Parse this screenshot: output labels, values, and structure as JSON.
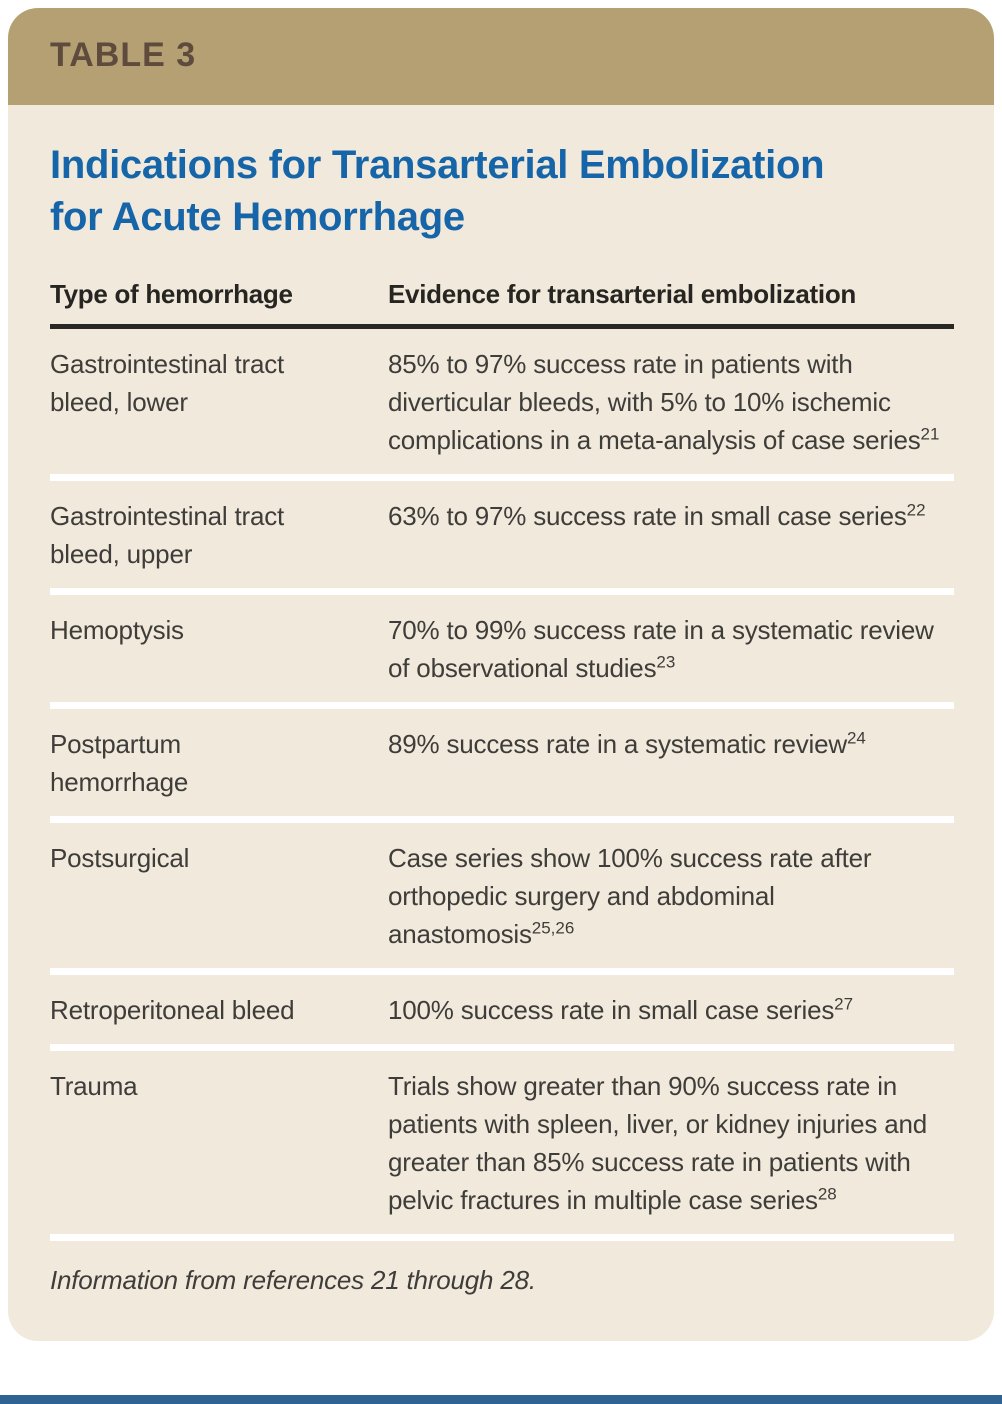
{
  "table_label": "TABLE 3",
  "title": "Indications for Transarterial Embolization for Acute Hemorrhage",
  "columns": {
    "type": "Type of hemorrhage",
    "evidence": "Evidence for transarterial embolization"
  },
  "rows": [
    {
      "type": "Gastrointestinal tract bleed, lower",
      "evidence": "85% to 97% success rate in patients with diverticular bleeds, with 5% to 10% ischemic complications in a meta-analysis of case series",
      "ref": "21"
    },
    {
      "type": "Gastrointestinal tract bleed, upper",
      "evidence": "63% to 97% success rate in small case series",
      "ref": "22"
    },
    {
      "type": "Hemoptysis",
      "evidence": "70% to 99% success rate in a systematic review of observational studies",
      "ref": "23"
    },
    {
      "type": "Postpartum hemorrhage",
      "evidence": "89% success rate in a systematic review",
      "ref": "24"
    },
    {
      "type": "Postsurgical",
      "evidence": "Case series show 100% success rate after orthopedic surgery and abdominal anastomosis",
      "ref": "25,26"
    },
    {
      "type": "Retroperitoneal bleed",
      "evidence": "100% success rate in small case series",
      "ref": "27"
    },
    {
      "type": "Trauma",
      "evidence": "Trials show greater than 90% success rate in patients with spleen, liver, or kidney injuries and greater than 85% success rate in patients with pelvic fractures in multiple case series",
      "ref": "28"
    }
  ],
  "footnote": "Information from references 21 through 28.",
  "colors": {
    "band_tan": "#b4a073",
    "band_label_brown": "#5e4b3d",
    "background_cream": "#f1e9dc",
    "title_blue": "#1565a8",
    "body_text": "#3e3d3a",
    "header_rule": "#2a2823",
    "row_separator": "#ffffff",
    "bottom_rule_blue": "#2f6394"
  }
}
